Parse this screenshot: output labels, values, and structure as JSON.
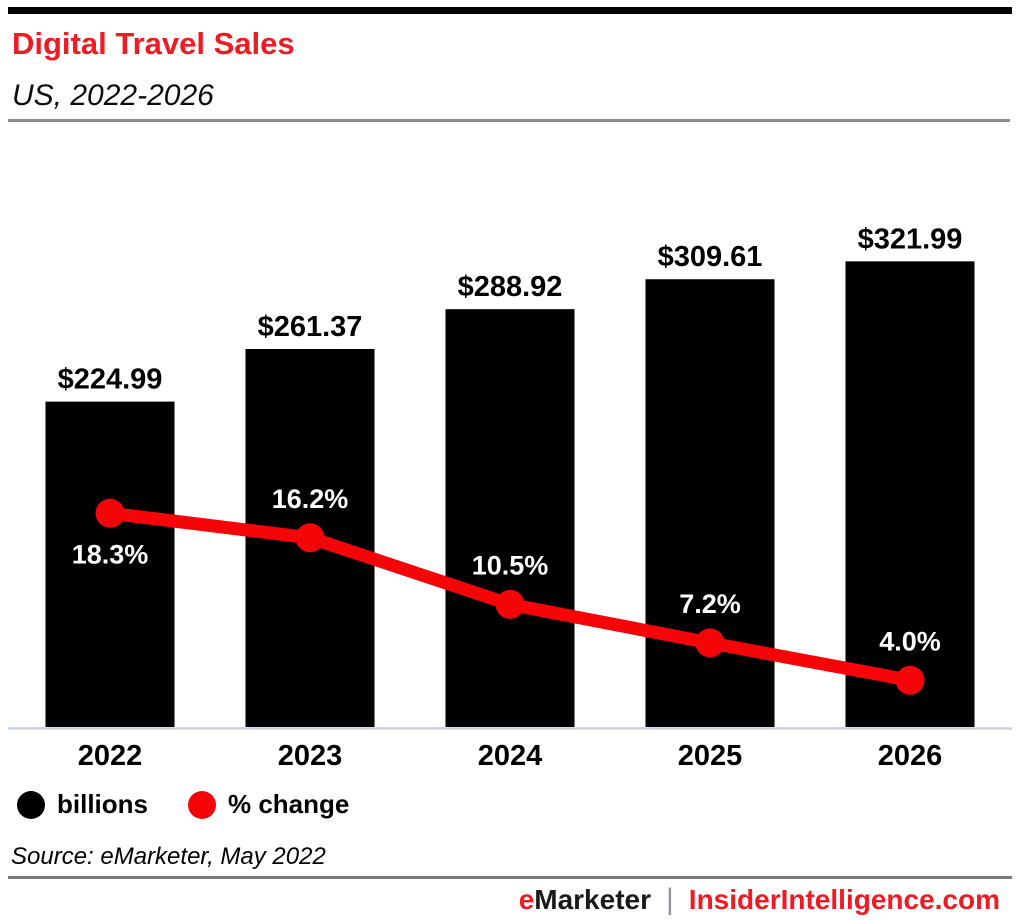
{
  "header": {
    "title": "Digital Travel Sales",
    "subtitle": "US, 2022-2026"
  },
  "chart_data": {
    "type": "bar",
    "title": "Digital Travel Sales",
    "subtitle": "US, 2022-2026",
    "categories": [
      "2022",
      "2023",
      "2024",
      "2025",
      "2026"
    ],
    "series": [
      {
        "name": "billions",
        "type": "bar",
        "color": "#000000",
        "values": [
          224.99,
          261.37,
          288.92,
          309.61,
          321.99
        ],
        "labels": [
          "$224.99",
          "$261.37",
          "$288.92",
          "$309.61",
          "$321.99"
        ]
      },
      {
        "name": "% change",
        "type": "line",
        "color": "#f50408",
        "values": [
          18.3,
          16.2,
          10.5,
          7.2,
          4.0
        ],
        "labels": [
          "18.3%",
          "16.2%",
          "10.5%",
          "7.2%",
          "4.0%"
        ]
      }
    ],
    "xlabel": "",
    "ylabel": "",
    "ylim": [
      0,
      350
    ],
    "y2lim": [
      0,
      20
    ],
    "gridlines": false,
    "y_axis_visible": false,
    "legend_position": "bottom-left",
    "bar_label_color": "#000000",
    "line_label_color": "#ffffff",
    "axis_line_color": "#c9d2e2"
  },
  "legend": {
    "items": [
      {
        "label": "billions",
        "color": "#000000"
      },
      {
        "label": "% change",
        "color": "#f50408"
      }
    ]
  },
  "source": "Source: eMarketer, May 2022",
  "footer": {
    "brand_e": "e",
    "brand_rest": "Marketer",
    "separator": "|",
    "site": "InsiderIntelligence.com"
  },
  "colors": {
    "brand_red": "#ee1b22",
    "bar_black": "#000000",
    "header_rule_gray": "#8c8c8c",
    "footer_rule_gray": "#7a7a7a"
  }
}
